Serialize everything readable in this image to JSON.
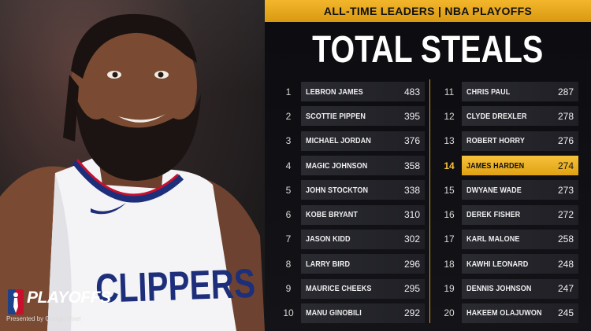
{
  "banner": "ALL-TIME LEADERS | NBA PLAYOFFS",
  "title": "TOTAL STEALS",
  "accent_color": "#f2b62b",
  "leaders": [
    {
      "rank": "1",
      "name": "LEBRON JAMES",
      "value": "483"
    },
    {
      "rank": "2",
      "name": "SCOTTIE PIPPEN",
      "value": "395"
    },
    {
      "rank": "3",
      "name": "MICHAEL JORDAN",
      "value": "376"
    },
    {
      "rank": "4",
      "name": "MAGIC JOHNSON",
      "value": "358"
    },
    {
      "rank": "5",
      "name": "JOHN STOCKTON",
      "value": "338"
    },
    {
      "rank": "6",
      "name": "KOBE BRYANT",
      "value": "310"
    },
    {
      "rank": "7",
      "name": "JASON KIDD",
      "value": "302"
    },
    {
      "rank": "8",
      "name": "LARRY BIRD",
      "value": "296"
    },
    {
      "rank": "9",
      "name": "MAURICE CHEEKS",
      "value": "295"
    },
    {
      "rank": "10",
      "name": "MANU GINOBILI",
      "value": "292"
    },
    {
      "rank": "11",
      "name": "CHRIS PAUL",
      "value": "287"
    },
    {
      "rank": "12",
      "name": "CLYDE DREXLER",
      "value": "278"
    },
    {
      "rank": "13",
      "name": "ROBERT HORRY",
      "value": "276"
    },
    {
      "rank": "14",
      "name": "JAMES HARDEN",
      "value": "274",
      "highlight": true
    },
    {
      "rank": "15",
      "name": "DWYANE WADE",
      "value": "273"
    },
    {
      "rank": "16",
      "name": "DEREK FISHER",
      "value": "272"
    },
    {
      "rank": "17",
      "name": "KARL MALONE",
      "value": "258"
    },
    {
      "rank": "18",
      "name": "KAWHI LEONARD",
      "value": "248"
    },
    {
      "rank": "19",
      "name": "DENNIS JOHNSON",
      "value": "247"
    },
    {
      "rank": "20",
      "name": "HAKEEM OLAJUWON",
      "value": "245"
    }
  ],
  "photo": {
    "jersey_text": "CLIPPERS"
  },
  "logo": {
    "word": "PLAYOFFS",
    "sub": "Presented by Google Pixel"
  }
}
